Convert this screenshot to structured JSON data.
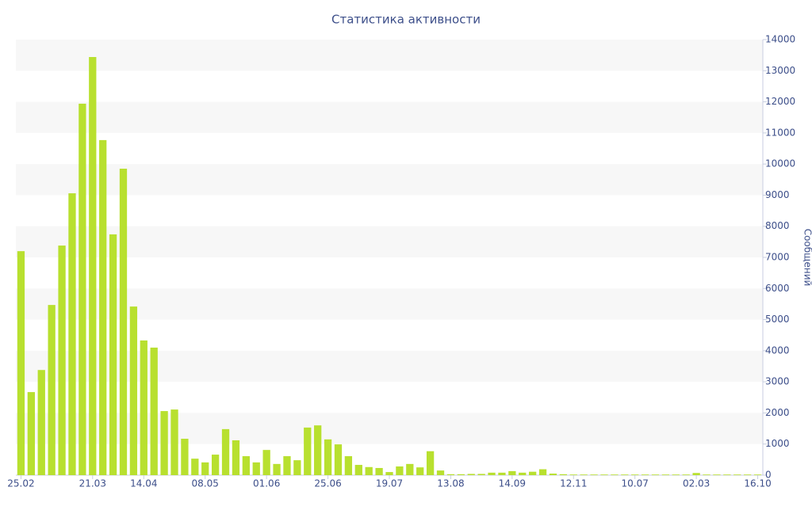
{
  "chart_data": {
    "type": "bar",
    "title": "Статистика активности",
    "y_axis_label": "Сообщений",
    "categories": [
      "25.02",
      null,
      null,
      null,
      null,
      null,
      null,
      "21.03",
      null,
      null,
      null,
      null,
      "14.04",
      null,
      null,
      null,
      null,
      null,
      "08.05",
      null,
      null,
      null,
      null,
      null,
      "01.06",
      null,
      null,
      null,
      null,
      null,
      "25.06",
      null,
      null,
      null,
      null,
      null,
      "19.07",
      null,
      null,
      null,
      null,
      null,
      "13.08",
      null,
      null,
      null,
      null,
      null,
      "14.09",
      null,
      null,
      null,
      null,
      null,
      "12.11",
      null,
      null,
      null,
      null,
      null,
      "10.07",
      null,
      null,
      null,
      null,
      null,
      "02.03",
      null,
      null,
      null,
      null,
      null,
      "16.10"
    ],
    "values": [
      7200,
      2670,
      3380,
      5470,
      7380,
      9060,
      11940,
      13440,
      10770,
      7740,
      9850,
      5420,
      4330,
      4100,
      2060,
      2110,
      1170,
      530,
      410,
      660,
      1480,
      1120,
      610,
      410,
      810,
      360,
      610,
      480,
      1530,
      1600,
      1150,
      990,
      610,
      330,
      260,
      230,
      100,
      280,
      360,
      250,
      770,
      150,
      30,
      30,
      40,
      40,
      80,
      80,
      130,
      80,
      110,
      190,
      50,
      30,
      20,
      20,
      20,
      20,
      20,
      20,
      20,
      20,
      20,
      20,
      20,
      20,
      70,
      20,
      20,
      20,
      20,
      20,
      20
    ],
    "color": "#b8e02f",
    "ylim": [
      0,
      14000
    ],
    "yticks": [
      0,
      1000,
      2000,
      3000,
      4000,
      5000,
      6000,
      7000,
      8000,
      9000,
      10000,
      11000,
      12000,
      13000,
      14000
    ],
    "grid": true,
    "y_axis_side": "right"
  }
}
